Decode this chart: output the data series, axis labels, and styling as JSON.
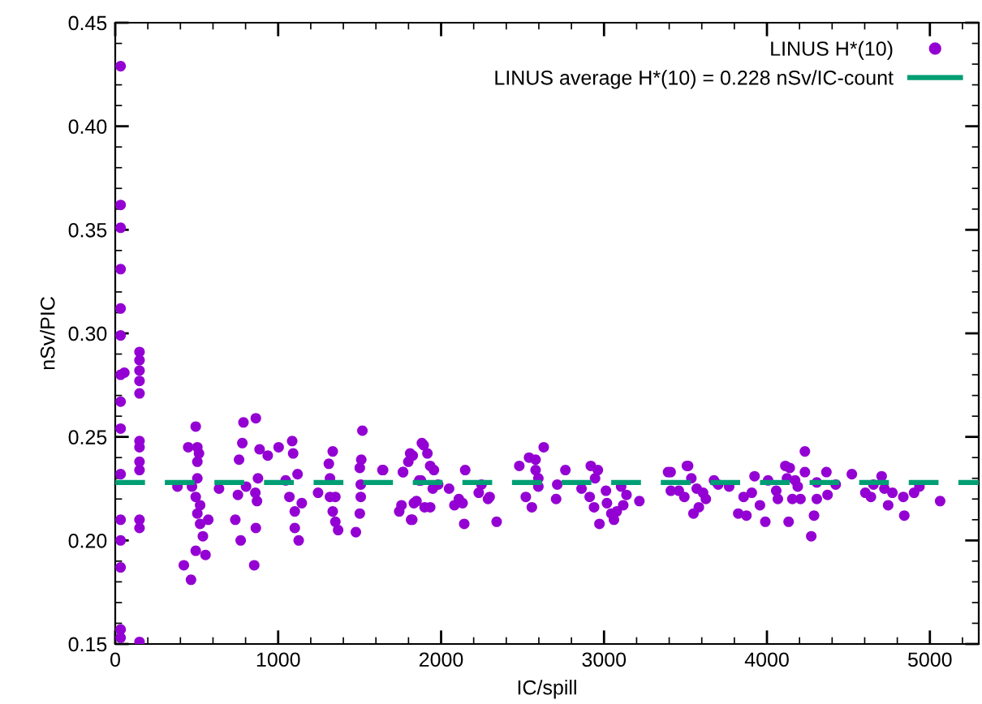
{
  "chart_data": {
    "type": "scatter",
    "xlabel": "IC/spill",
    "ylabel": "nSv/PIC",
    "xlim": [
      0,
      5300
    ],
    "ylim": [
      0.15,
      0.45
    ],
    "xticks": [
      0,
      1000,
      2000,
      3000,
      4000,
      5000
    ],
    "yticks": [
      {
        "value": 0.15,
        "label": "0.15"
      },
      {
        "value": 0.2,
        "label": "0.20"
      },
      {
        "value": 0.25,
        "label": "0.25"
      },
      {
        "value": 0.3,
        "label": "0.30"
      },
      {
        "value": 0.35,
        "label": "0.35"
      },
      {
        "value": 0.4,
        "label": "0.40"
      },
      {
        "value": 0.45,
        "label": "0.45"
      }
    ],
    "grid": false,
    "legend": "top right",
    "marker": "circle",
    "series": [
      {
        "name": "LINUS H*(10)",
        "color": "#9400d3",
        "x": [
          33,
          33,
          33,
          33,
          33,
          33,
          33,
          33,
          33,
          33,
          33,
          33,
          33,
          33,
          33,
          149,
          149,
          149,
          149,
          149,
          149,
          149,
          149,
          149,
          149,
          149,
          149,
          56,
          382,
          421,
          448,
          465,
          471,
          494,
          504,
          504,
          504,
          494,
          521,
          504,
          521,
          538,
          554,
          571,
          637,
          494,
          514,
          737,
          753,
          760,
          770,
          780,
          787,
          803,
          853,
          863,
          863,
          860,
          870,
          876,
          886,
          936,
          1003,
          1046,
          1069,
          1086,
          1092,
          1102,
          1102,
          1119,
          1126,
          1145,
          1245,
          1311,
          1318,
          1335,
          1318,
          1335,
          1351,
          1368,
          1351,
          1477,
          1501,
          1507,
          1507,
          1510,
          1517,
          1501,
          1640,
          1743,
          1766,
          1799,
          1826,
          1823,
          1849,
          1882,
          1866,
          1644,
          1767,
          1757,
          1816,
          1810,
          1833,
          1893,
          1916,
          1933,
          1956,
          1876,
          1899,
          1933,
          1949,
          1982,
          2049,
          2082,
          2109,
          2132,
          2142,
          2148,
          2248,
          2231,
          2288,
          2298,
          2341,
          2480,
          2520,
          2540,
          2557,
          2580,
          2580,
          2597,
          2630,
          2597,
          2706,
          2763,
          2713,
          2862,
          2919,
          2962,
          2945,
          2912,
          2939,
          2972,
          3012,
          3018,
          3045,
          3061,
          3078,
          3105,
          3118,
          3138,
          3217,
          3393,
          3410,
          3493,
          3516,
          3549,
          3536,
          3569,
          3409,
          3509,
          3459,
          3582,
          3608,
          3625,
          3675,
          3701,
          3768,
          3824,
          3874,
          3857,
          3907,
          3924,
          3957,
          3990,
          4007,
          4057,
          4067,
          4113,
          4140,
          4123,
          4133,
          4156,
          4173,
          4189,
          4206,
          4233,
          4233,
          4289,
          4272,
          4306,
          4306,
          4365,
          4372,
          4422,
          4521,
          4604,
          4638,
          4654,
          4704,
          4721,
          4744,
          4770,
          4837,
          4843,
          4903,
          4936,
          5063
        ],
        "values": [
          0.429,
          0.362,
          0.351,
          0.331,
          0.312,
          0.299,
          0.28,
          0.267,
          0.254,
          0.232,
          0.21,
          0.2,
          0.187,
          0.157,
          0.153,
          0.291,
          0.287,
          0.282,
          0.277,
          0.271,
          0.248,
          0.245,
          0.238,
          0.234,
          0.21,
          0.206,
          0.151,
          0.281,
          0.226,
          0.188,
          0.245,
          0.181,
          0.226,
          0.255,
          0.245,
          0.238,
          0.23,
          0.221,
          0.217,
          0.213,
          0.208,
          0.202,
          0.193,
          0.21,
          0.225,
          0.195,
          0.242,
          0.21,
          0.222,
          0.239,
          0.2,
          0.247,
          0.257,
          0.226,
          0.188,
          0.259,
          0.206,
          0.223,
          0.219,
          0.23,
          0.244,
          0.241,
          0.245,
          0.229,
          0.221,
          0.248,
          0.242,
          0.214,
          0.206,
          0.232,
          0.2,
          0.218,
          0.223,
          0.237,
          0.23,
          0.243,
          0.221,
          0.214,
          0.209,
          0.205,
          0.221,
          0.204,
          0.235,
          0.227,
          0.221,
          0.239,
          0.253,
          0.213,
          0.234,
          0.214,
          0.233,
          0.238,
          0.241,
          0.21,
          0.219,
          0.247,
          0.229,
          0.234,
          0.233,
          0.217,
          0.21,
          0.242,
          0.218,
          0.246,
          0.242,
          0.236,
          0.234,
          0.229,
          0.216,
          0.216,
          0.225,
          0.227,
          0.225,
          0.217,
          0.22,
          0.218,
          0.208,
          0.234,
          0.227,
          0.223,
          0.22,
          0.221,
          0.209,
          0.236,
          0.221,
          0.24,
          0.216,
          0.239,
          0.234,
          0.23,
          0.245,
          0.226,
          0.22,
          0.234,
          0.227,
          0.225,
          0.236,
          0.234,
          0.23,
          0.221,
          0.216,
          0.208,
          0.224,
          0.218,
          0.213,
          0.21,
          0.214,
          0.226,
          0.217,
          0.222,
          0.219,
          0.233,
          0.224,
          0.221,
          0.236,
          0.213,
          0.23,
          0.225,
          0.233,
          0.236,
          0.224,
          0.216,
          0.223,
          0.22,
          0.229,
          0.227,
          0.226,
          0.213,
          0.212,
          0.221,
          0.223,
          0.231,
          0.217,
          0.209,
          0.229,
          0.224,
          0.22,
          0.236,
          0.235,
          0.23,
          0.209,
          0.22,
          0.229,
          0.226,
          0.22,
          0.243,
          0.233,
          0.212,
          0.202,
          0.22,
          0.228,
          0.233,
          0.222,
          0.227,
          0.232,
          0.223,
          0.221,
          0.227,
          0.231,
          0.225,
          0.217,
          0.223,
          0.221,
          0.212,
          0.223,
          0.226,
          0.219
        ]
      }
    ],
    "ref_lines": [
      {
        "axis": "y",
        "value": 0.228,
        "label": "LINUS average H*(10) = 0.228 nSv/IC-count",
        "color": "#009e73",
        "line_style": "dashed"
      }
    ]
  }
}
